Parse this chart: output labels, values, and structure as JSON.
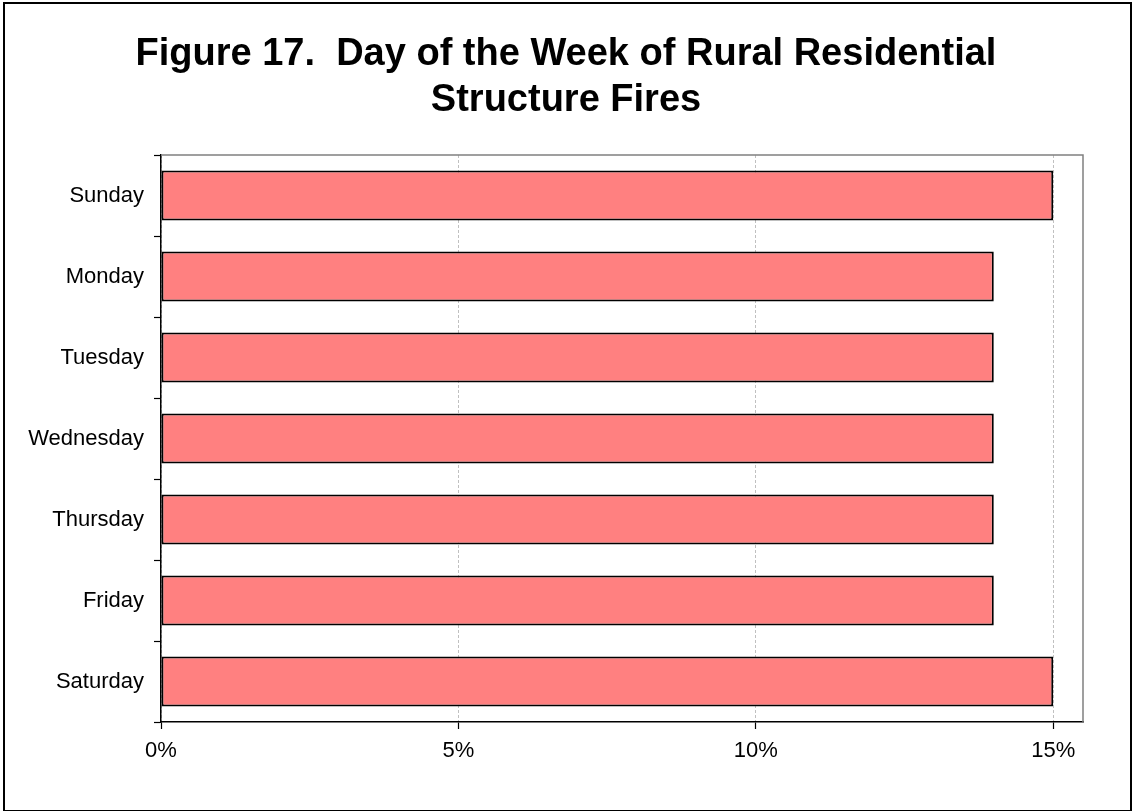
{
  "chart_data": {
    "type": "bar",
    "orientation": "horizontal",
    "title": "Figure 17.  Day of the Week of Rural Residential Structure Fires",
    "categories": [
      "Sunday",
      "Monday",
      "Tuesday",
      "Wednesday",
      "Thursday",
      "Friday",
      "Saturday"
    ],
    "values": [
      15,
      14,
      14,
      14,
      14,
      14,
      15
    ],
    "color": "#ff8080",
    "xlim": [
      0,
      15.5
    ],
    "xticks": [
      {
        "value": 0,
        "label": "0%"
      },
      {
        "value": 5,
        "label": "5%"
      },
      {
        "value": 10,
        "label": "10%"
      },
      {
        "value": 15,
        "label": "15%"
      }
    ],
    "grid": "x"
  }
}
